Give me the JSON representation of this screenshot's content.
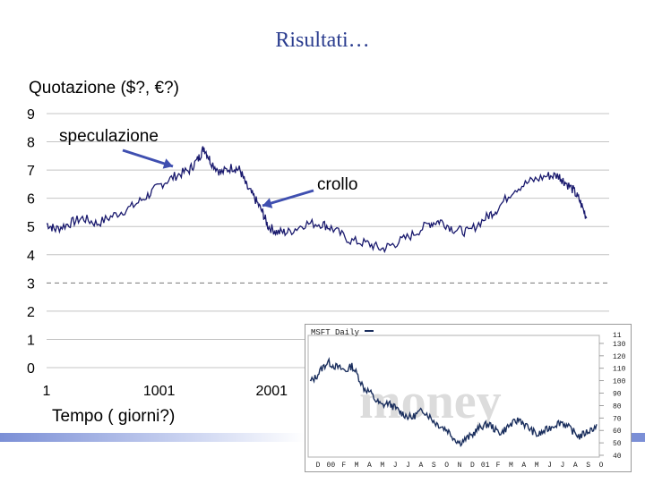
{
  "slide": {
    "title": "Risultati…"
  },
  "chart_data": [
    {
      "type": "line",
      "title": "",
      "ylabel": "Quotazione ($?, €?)",
      "xlabel": "Tempo ( giorni?)",
      "ylim": [
        0,
        9
      ],
      "y_ticks": [
        "0",
        "1",
        "2",
        "3",
        "4",
        "5",
        "6",
        "7",
        "8",
        "9"
      ],
      "x_ticks": [
        {
          "label": "1",
          "value": 1
        },
        {
          "label": "1001",
          "value": 1001
        },
        {
          "label": "2001",
          "value": 2001
        }
      ],
      "xlim": [
        1,
        5000
      ],
      "reference_line": {
        "y": 3,
        "style": "dashed"
      },
      "annotations": [
        {
          "text": "speculazione",
          "x": 1080,
          "y": 7.0
        },
        {
          "text": "crollo",
          "x": 1950,
          "y": 5.7
        }
      ],
      "series": [
        {
          "color": "#1a1a6e",
          "points": [
            [
              1,
              5.1
            ],
            [
              80,
              4.9
            ],
            [
              200,
              5.1
            ],
            [
              320,
              5.3
            ],
            [
              450,
              5.1
            ],
            [
              600,
              5.4
            ],
            [
              760,
              5.7
            ],
            [
              900,
              6.1
            ],
            [
              1020,
              6.5
            ],
            [
              1150,
              6.8
            ],
            [
              1270,
              7.0
            ],
            [
              1350,
              7.4
            ],
            [
              1400,
              7.8
            ],
            [
              1460,
              7.3
            ],
            [
              1550,
              6.9
            ],
            [
              1650,
              7.1
            ],
            [
              1720,
              7.0
            ],
            [
              1780,
              6.4
            ],
            [
              1850,
              6.0
            ],
            [
              1920,
              5.5
            ],
            [
              1970,
              5.0
            ],
            [
              2050,
              4.8
            ],
            [
              2150,
              4.8
            ],
            [
              2300,
              5.1
            ],
            [
              2450,
              5.1
            ],
            [
              2550,
              4.9
            ],
            [
              2700,
              4.5
            ],
            [
              2850,
              4.4
            ],
            [
              2980,
              4.2
            ],
            [
              3100,
              4.4
            ],
            [
              3250,
              4.7
            ],
            [
              3400,
              5.1
            ],
            [
              3500,
              5.2
            ],
            [
              3620,
              4.9
            ],
            [
              3750,
              4.8
            ],
            [
              3900,
              5.3
            ],
            [
              4000,
              5.6
            ],
            [
              4150,
              6.3
            ],
            [
              4300,
              6.6
            ],
            [
              4450,
              6.8
            ],
            [
              4550,
              6.8
            ],
            [
              4600,
              6.6
            ],
            [
              4680,
              6.3
            ],
            [
              4740,
              5.9
            ],
            [
              4800,
              5.3
            ]
          ]
        }
      ]
    },
    {
      "type": "line",
      "title": "MSFT Daily",
      "watermark": "money",
      "x_ticks": [
        "D",
        "00",
        "F",
        "M",
        "A",
        "M",
        "J",
        "J",
        "A",
        "S",
        "O",
        "N",
        "D",
        "01",
        "F",
        "M",
        "A",
        "M",
        "J",
        "J",
        "A",
        "S",
        "O"
      ],
      "y_ticks": [
        "40",
        "50",
        "60",
        "70",
        "80",
        "90",
        "100",
        "110",
        "120",
        "130"
      ],
      "y_tick_partial": "11",
      "ylim": [
        40,
        135
      ],
      "series": [
        {
          "color": "#1b2f5e",
          "points": [
            [
              0,
              99
            ],
            [
              1,
              103
            ],
            [
              2,
              110
            ],
            [
              3,
              115
            ],
            [
              4,
              112
            ],
            [
              5,
              110
            ],
            [
              6,
              108
            ],
            [
              7,
              112
            ],
            [
              8,
              104
            ],
            [
              9,
              94
            ],
            [
              10,
              91
            ],
            [
              11,
              84
            ],
            [
              12,
              80
            ],
            [
              13,
              82
            ],
            [
              14,
              79
            ],
            [
              15,
              75
            ],
            [
              16,
              72
            ],
            [
              17,
              70
            ],
            [
              18,
              74
            ],
            [
              19,
              76
            ],
            [
              20,
              71
            ],
            [
              21,
              66
            ],
            [
              22,
              63
            ],
            [
              23,
              60
            ],
            [
              24,
              54
            ],
            [
              25,
              50
            ],
            [
              26,
              53
            ],
            [
              27,
              56
            ],
            [
              28,
              61
            ],
            [
              29,
              64
            ],
            [
              30,
              65
            ],
            [
              31,
              60
            ],
            [
              32,
              58
            ],
            [
              33,
              63
            ],
            [
              34,
              66
            ],
            [
              35,
              69
            ],
            [
              36,
              64
            ],
            [
              37,
              60
            ],
            [
              38,
              56
            ],
            [
              39,
              59
            ],
            [
              40,
              62
            ],
            [
              41,
              65
            ],
            [
              42,
              67
            ],
            [
              43,
              63
            ],
            [
              44,
              59
            ],
            [
              45,
              55
            ],
            [
              46,
              58
            ],
            [
              47,
              61
            ],
            [
              48,
              64
            ]
          ]
        }
      ]
    }
  ]
}
